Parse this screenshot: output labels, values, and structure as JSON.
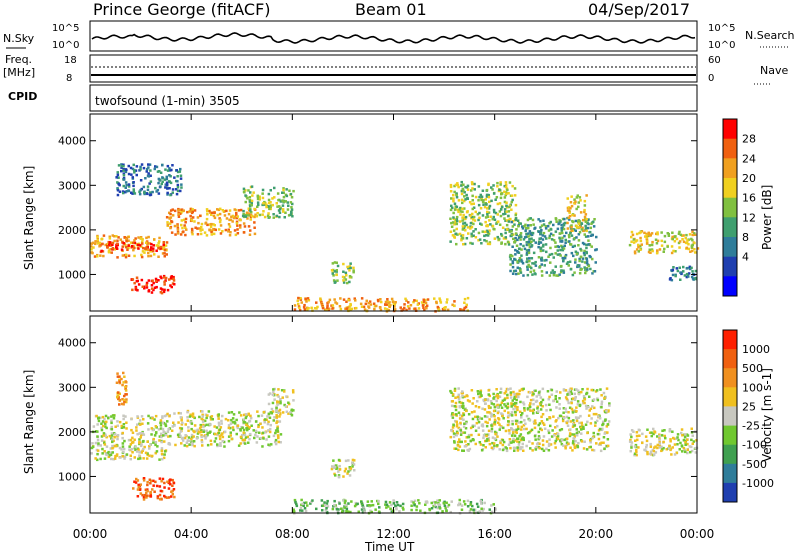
{
  "header": {
    "station": "Prince George (fitACF)",
    "beam": "Beam 01",
    "date": "04/Sep/2017"
  },
  "noise_panel": {
    "left_label": "N.Sky",
    "left_ticks": [
      "10^5",
      "10^0"
    ],
    "right_ticks": [
      "10^5",
      "10^0"
    ],
    "right_label": "N.Search"
  },
  "freq_panel": {
    "left_label_line1": "Freq.",
    "left_label_line2": "[MHz]",
    "left_ticks": [
      "18",
      "8"
    ],
    "right_ticks": [
      "60",
      "0"
    ],
    "right_label": "Nave"
  },
  "cpid_panel": {
    "label": "CPID",
    "program": "twofsound (1-min) 3505"
  },
  "x_axis": {
    "label": "Time UT",
    "ticks": [
      "00:00",
      "04:00",
      "08:00",
      "12:00",
      "16:00",
      "20:00",
      "00:00"
    ]
  },
  "power_panel": {
    "ylabel": "Slant Range [km]",
    "yticks": [
      "4000",
      "3000",
      "2000",
      "1000"
    ],
    "colorbar_label": "Power [dB]",
    "colorbar_ticks": [
      "28",
      "24",
      "20",
      "16",
      "12",
      "8",
      "4"
    ],
    "colors": [
      "#0000ff",
      "#1f3fb0",
      "#2f7d9a",
      "#3f9f6f",
      "#80c040",
      "#f0d020",
      "#f0a020",
      "#f06010",
      "#ff0000"
    ]
  },
  "velocity_panel": {
    "ylabel": "Slant Range [km]",
    "yticks": [
      "4000",
      "3000",
      "2000",
      "1000"
    ],
    "colorbar_label": "Velocity [m s-1]",
    "colorbar_ticks": [
      "1000",
      "500",
      "100",
      "25",
      "-25",
      "-100",
      "-500",
      "-1000"
    ],
    "colors": [
      "#1f3fb0",
      "#2f7d9a",
      "#3fa050",
      "#70c830",
      "#c8c8c0",
      "#f0c020",
      "#f09020",
      "#f06010",
      "#ff2000"
    ]
  },
  "chart_data": {
    "type": "heatmap",
    "x_range_hours": [
      0,
      24
    ],
    "y_range_km": [
      180,
      4600
    ],
    "bands_power": [
      {
        "t": [
          0.0,
          3.0
        ],
        "r": [
          1400,
          1900
        ],
        "level": 6
      },
      {
        "t": [
          0.4,
          3.0
        ],
        "r": [
          1550,
          1750
        ],
        "level": 8
      },
      {
        "t": [
          1.6,
          3.3
        ],
        "r": [
          600,
          1000
        ],
        "level": 8
      },
      {
        "t": [
          1.0,
          3.6
        ],
        "r": [
          2800,
          3500
        ],
        "level": 2
      },
      {
        "t": [
          3.0,
          6.5
        ],
        "r": [
          1900,
          2500
        ],
        "level": 6
      },
      {
        "t": [
          6.0,
          8.0
        ],
        "r": [
          2300,
          3000
        ],
        "level": 4
      },
      {
        "t": [
          9.5,
          10.4
        ],
        "r": [
          800,
          1300
        ],
        "level": 4
      },
      {
        "t": [
          8.0,
          15.0
        ],
        "r": [
          200,
          500
        ],
        "level": 6
      },
      {
        "t": [
          14.2,
          16.8
        ],
        "r": [
          1700,
          3100
        ],
        "level": 4
      },
      {
        "t": [
          16.5,
          20.0
        ],
        "r": [
          1000,
          2300
        ],
        "level": 3
      },
      {
        "t": [
          18.8,
          19.6
        ],
        "r": [
          2000,
          2800
        ],
        "level": 5
      },
      {
        "t": [
          21.3,
          24.0
        ],
        "r": [
          1500,
          2000
        ],
        "level": 5
      },
      {
        "t": [
          22.8,
          24.0
        ],
        "r": [
          900,
          1200
        ],
        "level": 2
      }
    ],
    "bands_velocity": [
      {
        "t": [
          0.0,
          3.0
        ],
        "r": [
          1400,
          2400
        ],
        "level": 4
      },
      {
        "t": [
          1.6,
          3.3
        ],
        "r": [
          500,
          1000
        ],
        "level": 7
      },
      {
        "t": [
          1.0,
          1.4
        ],
        "r": [
          2600,
          3400
        ],
        "level": 6
      },
      {
        "t": [
          3.0,
          7.5
        ],
        "r": [
          1700,
          2500
        ],
        "level": 4
      },
      {
        "t": [
          7.0,
          8.0
        ],
        "r": [
          2400,
          3000
        ],
        "level": 4
      },
      {
        "t": [
          9.5,
          10.4
        ],
        "r": [
          1000,
          1400
        ],
        "level": 4
      },
      {
        "t": [
          8.0,
          16.0
        ],
        "r": [
          200,
          500
        ],
        "level": 3
      },
      {
        "t": [
          14.2,
          20.5
        ],
        "r": [
          1600,
          3000
        ],
        "level": 4
      },
      {
        "t": [
          21.3,
          24.0
        ],
        "r": [
          1500,
          2100
        ],
        "level": 4
      }
    ]
  }
}
